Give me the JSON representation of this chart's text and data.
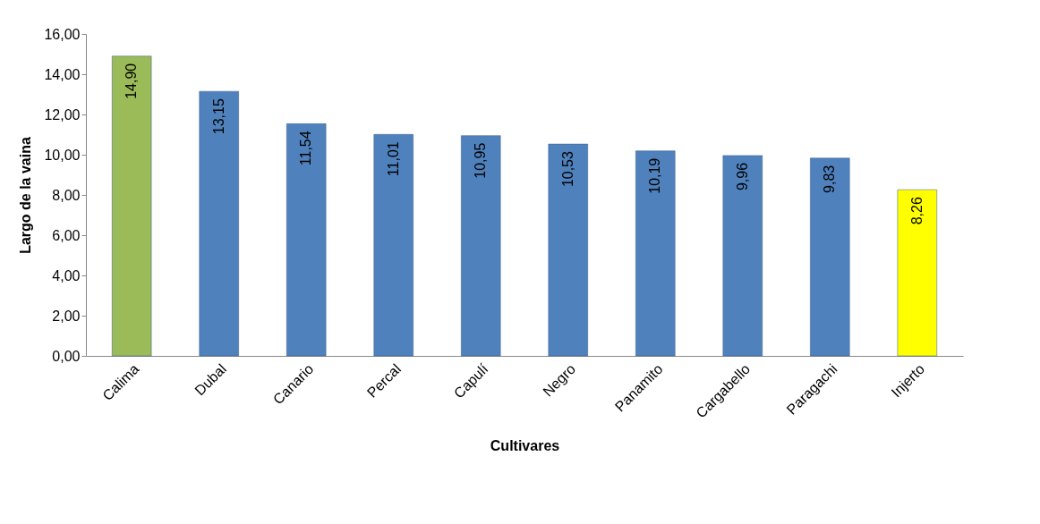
{
  "chart_data": {
    "type": "bar",
    "xlabel": "Cultivares",
    "ylabel": "Largo de la vaina",
    "categories": [
      "Calima",
      "Dubal",
      "Canario",
      "Percal",
      "Capulí",
      "Negro",
      "Panamito",
      "Cargabello",
      "Paragachi",
      "Injerto"
    ],
    "values": [
      14.9,
      13.15,
      11.54,
      11.01,
      10.95,
      10.53,
      10.19,
      9.96,
      9.83,
      8.26
    ],
    "colors": [
      "#9bbb59",
      "#4f81bd",
      "#4f81bd",
      "#4f81bd",
      "#4f81bd",
      "#4f81bd",
      "#4f81bd",
      "#4f81bd",
      "#4f81bd",
      "#ffff00"
    ],
    "value_labels": [
      "14,90",
      "13,15",
      "11,54",
      "11,01",
      "10,95",
      "10,53",
      "10,19",
      "9,96",
      "9,83",
      "8,26"
    ],
    "ylim": [
      0,
      16
    ],
    "yticks": [
      {
        "value": 0,
        "label": "0,00"
      },
      {
        "value": 2,
        "label": "2,00"
      },
      {
        "value": 4,
        "label": "4,00"
      },
      {
        "value": 6,
        "label": "6,00"
      },
      {
        "value": 8,
        "label": "8,00"
      },
      {
        "value": 10,
        "label": "10,00"
      },
      {
        "value": 12,
        "label": "12,00"
      },
      {
        "value": 14,
        "label": "14,00"
      },
      {
        "value": 16,
        "label": "16,00"
      }
    ],
    "grid": false
  }
}
